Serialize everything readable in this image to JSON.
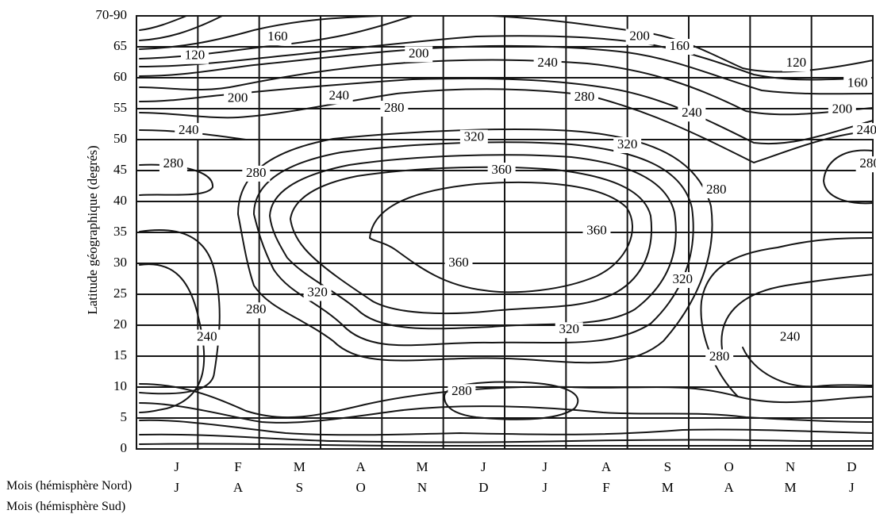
{
  "chart_data": {
    "type": "contour",
    "title": "",
    "ylabel": "Latitude géographique  (degrés)",
    "y_ticks": [
      "0",
      "5",
      "10",
      "15",
      "20",
      "25",
      "30",
      "35",
      "40",
      "45",
      "50",
      "55",
      "60",
      "65",
      "70-90"
    ],
    "ylim": [
      0,
      70
    ],
    "x_rows": [
      {
        "label": "Mois (hémisphère Nord)",
        "months": [
          "J",
          "F",
          "M",
          "A",
          "M",
          "J",
          "J",
          "A",
          "S",
          "O",
          "N",
          "D"
        ]
      },
      {
        "label": "Mois (hémisphère Sud)",
        "months": [
          "J",
          "A",
          "S",
          "O",
          "N",
          "D",
          "J",
          "F",
          "M",
          "A",
          "M",
          "J"
        ]
      }
    ],
    "grid": true,
    "contour_levels": [
      120,
      160,
      200,
      240,
      280,
      320,
      360
    ],
    "contour_labels": [
      {
        "text": "120",
        "month": 0.95,
        "lat": 63.5
      },
      {
        "text": "160",
        "month": 2.3,
        "lat": 66.5
      },
      {
        "text": "200",
        "month": 4.6,
        "lat": 63.8
      },
      {
        "text": "240",
        "month": 6.7,
        "lat": 62.3
      },
      {
        "text": "200",
        "month": 8.2,
        "lat": 66.6
      },
      {
        "text": "160",
        "month": 8.85,
        "lat": 65.0
      },
      {
        "text": "120",
        "month": 10.75,
        "lat": 62.3
      },
      {
        "text": "160",
        "month": 11.75,
        "lat": 59.0
      },
      {
        "text": "200",
        "month": 1.65,
        "lat": 56.6
      },
      {
        "text": "240",
        "month": 3.3,
        "lat": 57.0
      },
      {
        "text": "280",
        "month": 4.2,
        "lat": 55.0
      },
      {
        "text": "280",
        "month": 7.3,
        "lat": 56.8
      },
      {
        "text": "240",
        "month": 9.05,
        "lat": 54.2
      },
      {
        "text": "200",
        "month": 11.5,
        "lat": 54.8
      },
      {
        "text": "240",
        "month": 0.85,
        "lat": 51.4
      },
      {
        "text": "320",
        "month": 5.5,
        "lat": 50.3
      },
      {
        "text": "320",
        "month": 8.0,
        "lat": 49.1
      },
      {
        "text": "240",
        "month": 11.9,
        "lat": 51.4
      },
      {
        "text": "280",
        "month": 0.6,
        "lat": 46.0
      },
      {
        "text": "280",
        "month": 1.95,
        "lat": 44.5
      },
      {
        "text": "360",
        "month": 5.95,
        "lat": 45.0
      },
      {
        "text": "280",
        "month": 9.45,
        "lat": 41.8
      },
      {
        "text": "280",
        "month": 11.95,
        "lat": 46.0
      },
      {
        "text": "360",
        "month": 7.5,
        "lat": 35.2
      },
      {
        "text": "360",
        "month": 5.25,
        "lat": 30.0
      },
      {
        "text": "320",
        "month": 8.9,
        "lat": 27.3
      },
      {
        "text": "320",
        "month": 2.95,
        "lat": 25.2
      },
      {
        "text": "280",
        "month": 1.95,
        "lat": 22.4
      },
      {
        "text": "240",
        "month": 1.15,
        "lat": 18.0
      },
      {
        "text": "320",
        "month": 7.05,
        "lat": 19.2
      },
      {
        "text": "240",
        "month": 10.65,
        "lat": 18.0
      },
      {
        "text": "280",
        "month": 9.5,
        "lat": 14.8
      },
      {
        "text": "280",
        "month": 5.3,
        "lat": 9.2
      }
    ]
  }
}
